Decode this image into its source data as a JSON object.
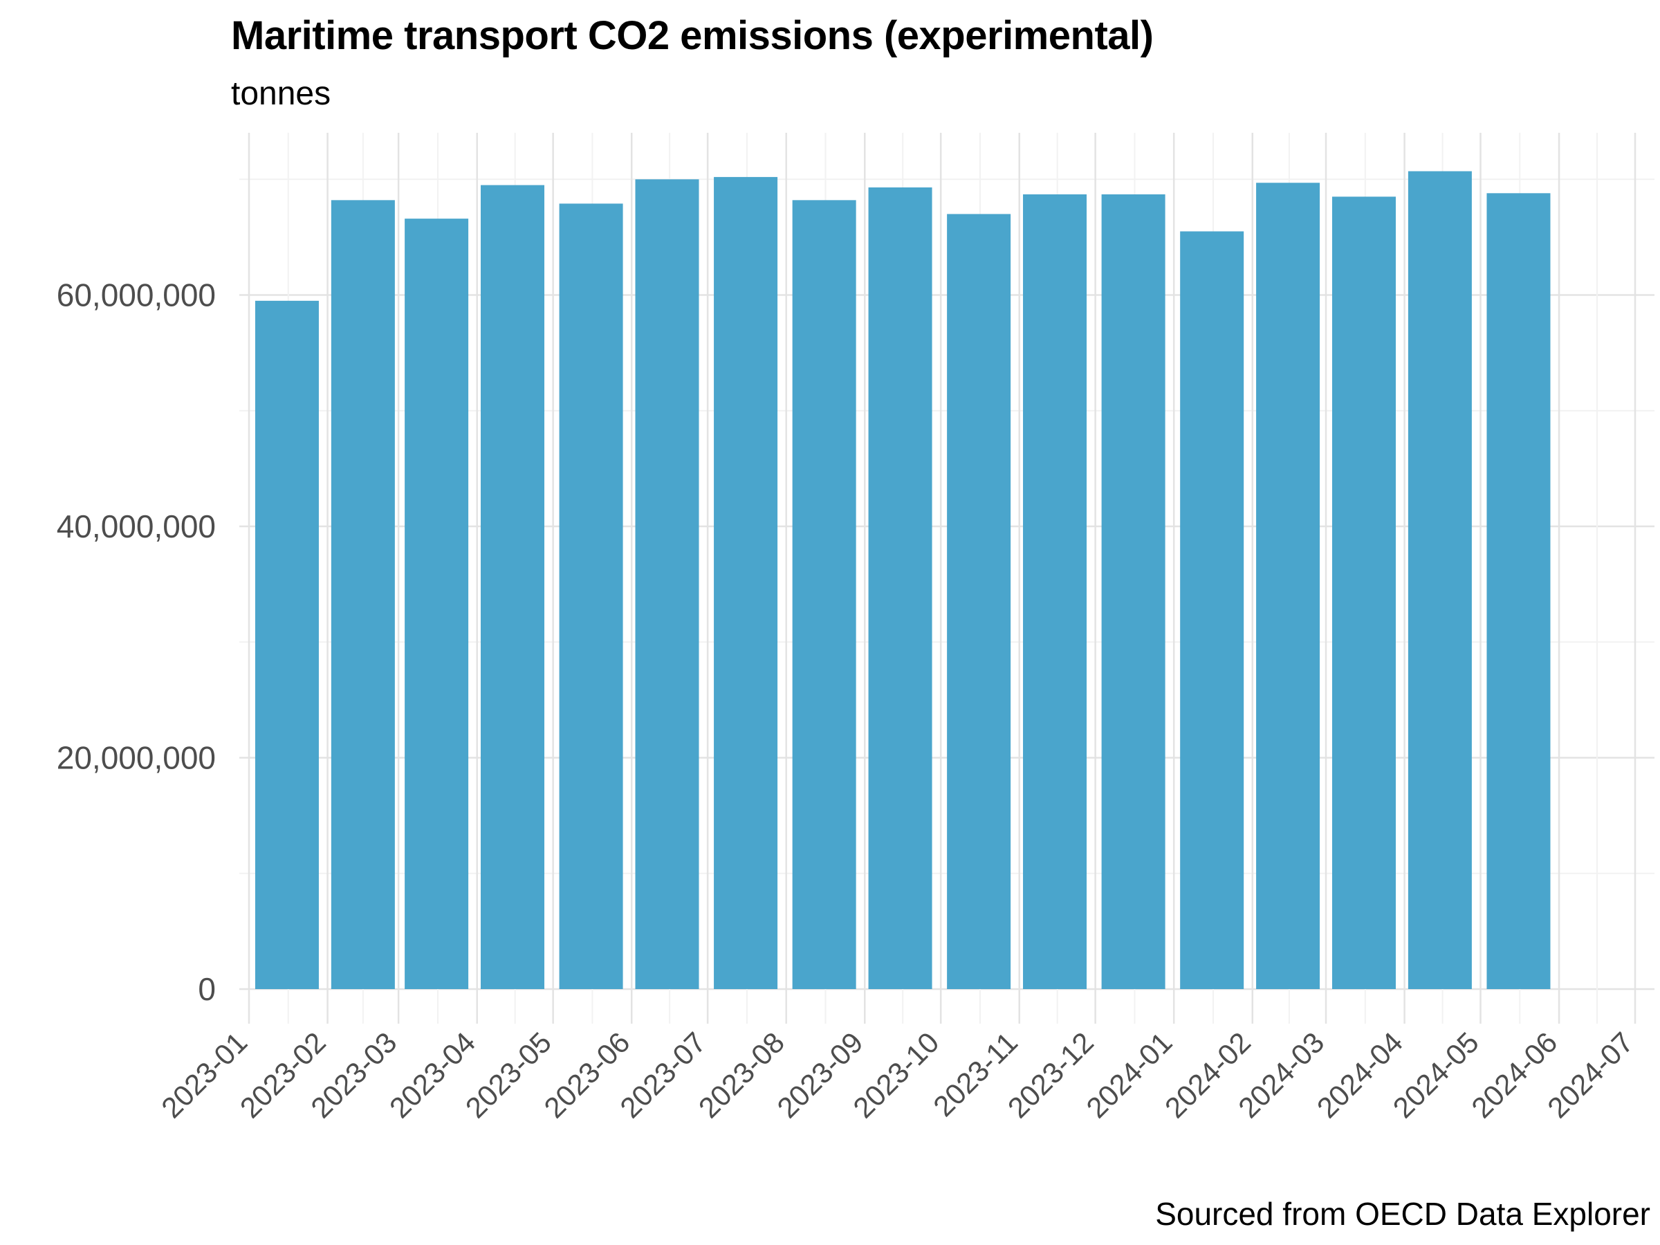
{
  "chart_data": {
    "type": "bar",
    "title": "Maritime transport CO2 emissions (experimental)",
    "subtitle": "tonnes",
    "caption": "Sourced from OECD Data Explorer",
    "xlabel": "",
    "ylabel": "",
    "x_tick_labels": [
      "2023-01",
      "2023-02",
      "2023-03",
      "2023-04",
      "2023-05",
      "2023-06",
      "2023-07",
      "2023-08",
      "2023-09",
      "2023-10",
      "2023-11",
      "2023-12",
      "2024-01",
      "2024-02",
      "2024-03",
      "2024-04",
      "2024-05",
      "2024-06",
      "2024-07"
    ],
    "y_tick_labels": [
      "0",
      "20,000,000",
      "40,000,000",
      "60,000,000"
    ],
    "y_tick_values": [
      0,
      20000000,
      40000000,
      60000000
    ],
    "x_range": [
      "2023-01-01",
      "2024-07-01"
    ],
    "ylim": [
      0,
      70000000
    ],
    "bar_color": "#4aa5cc",
    "grid": true,
    "legend": "none",
    "bars": [
      {
        "date": "2023-01-16",
        "value": 59500000
      },
      {
        "date": "2023-02-15",
        "value": 68200000
      },
      {
        "date": "2023-03-16",
        "value": 66600000
      },
      {
        "date": "2023-04-15",
        "value": 69500000
      },
      {
        "date": "2023-05-16",
        "value": 67900000
      },
      {
        "date": "2023-06-15",
        "value": 70000000
      },
      {
        "date": "2023-07-16",
        "value": 70200000
      },
      {
        "date": "2023-08-16",
        "value": 68200000
      },
      {
        "date": "2023-09-15",
        "value": 69300000
      },
      {
        "date": "2023-10-16",
        "value": 67000000
      },
      {
        "date": "2023-11-15",
        "value": 68700000
      },
      {
        "date": "2023-12-16",
        "value": 68700000
      },
      {
        "date": "2024-01-16",
        "value": 65500000
      },
      {
        "date": "2024-02-15",
        "value": 69700000
      },
      {
        "date": "2024-03-16",
        "value": 68500000
      },
      {
        "date": "2024-04-15",
        "value": 70700000
      },
      {
        "date": "2024-05-16",
        "value": 68800000
      }
    ]
  }
}
